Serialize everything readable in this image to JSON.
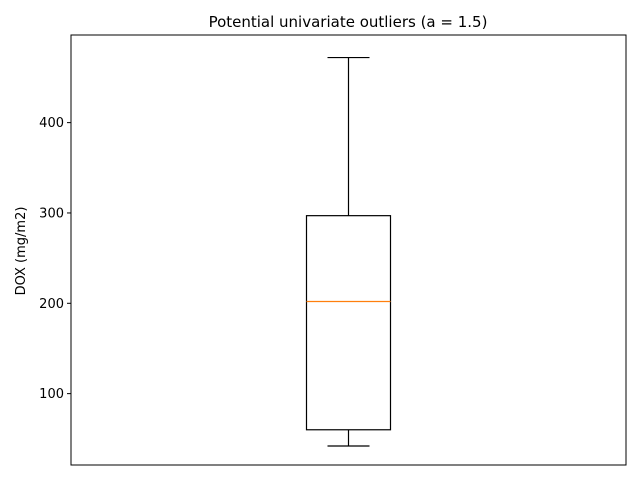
{
  "chart_data": {
    "type": "box",
    "title": "Potential univariate outliers (a = 1.5)",
    "xlabel": "",
    "ylabel": "DOX (mg/m2)",
    "ylim": [
      21,
      497
    ],
    "yticks": [
      100,
      200,
      300,
      400
    ],
    "ytick_labels": [
      "100",
      "200",
      "300",
      "400"
    ],
    "grid": false,
    "boxes": [
      {
        "whisker_low": 42,
        "q1": 60,
        "median": 202,
        "q3": 297,
        "whisker_high": 472,
        "outliers": []
      }
    ],
    "colors": {
      "box": "#000000",
      "median": "#ff7f0e",
      "whisker": "#000000"
    }
  }
}
